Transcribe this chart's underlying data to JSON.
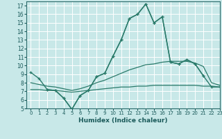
{
  "bg_color": "#c8e8e8",
  "grid_color": "#ffffff",
  "line_color": "#2a7a6a",
  "xlabel": "Humidex (Indice chaleur)",
  "xlim": [
    -0.5,
    23
  ],
  "ylim": [
    5,
    17.5
  ],
  "xticks": [
    0,
    1,
    2,
    3,
    4,
    5,
    6,
    7,
    8,
    9,
    10,
    11,
    12,
    13,
    14,
    15,
    16,
    17,
    18,
    19,
    20,
    21,
    22,
    23
  ],
  "yticks": [
    5,
    6,
    7,
    8,
    9,
    10,
    11,
    12,
    13,
    14,
    15,
    16,
    17
  ],
  "series": [
    {
      "x": [
        0,
        1,
        2,
        3,
        4,
        5,
        6,
        7,
        8,
        9,
        10,
        11,
        12,
        13,
        14,
        15,
        16,
        17,
        18,
        19,
        20,
        21
      ],
      "y": [
        9.2,
        8.5,
        7.2,
        7.1,
        6.2,
        4.9,
        6.5,
        7.1,
        8.7,
        9.1,
        11.1,
        13.0,
        15.5,
        16.0,
        17.2,
        15.0,
        15.7,
        10.4,
        10.2,
        10.7,
        10.2,
        8.8
      ],
      "marker": true,
      "lw": 1.0
    },
    {
      "x": [
        2,
        3,
        4,
        5,
        6,
        7,
        8,
        9,
        10,
        11,
        12,
        13,
        14,
        15,
        16,
        17,
        18,
        19,
        20,
        21,
        22,
        23
      ],
      "y": [
        7.2,
        7.1,
        6.2,
        4.9,
        6.5,
        7.1,
        8.7,
        9.1,
        11.1,
        13.0,
        15.5,
        16.0,
        17.2,
        15.0,
        15.7,
        10.4,
        10.2,
        10.7,
        10.2,
        8.8,
        7.5,
        7.5
      ],
      "marker": true,
      "lw": 1.0
    },
    {
      "x": [
        0,
        1,
        2,
        3,
        4,
        5,
        6,
        7,
        8,
        9,
        10,
        11,
        12,
        13,
        14,
        15,
        16,
        17,
        18,
        19,
        20,
        21,
        22,
        23
      ],
      "y": [
        8.0,
        7.8,
        7.6,
        7.5,
        7.3,
        7.1,
        7.3,
        7.6,
        8.0,
        8.3,
        8.7,
        9.1,
        9.5,
        9.8,
        10.1,
        10.2,
        10.4,
        10.5,
        10.5,
        10.5,
        10.3,
        9.9,
        8.0,
        7.7
      ],
      "marker": false,
      "lw": 0.9
    },
    {
      "x": [
        0,
        1,
        2,
        3,
        4,
        5,
        6,
        7,
        8,
        9,
        10,
        11,
        12,
        13,
        14,
        15,
        16,
        17,
        18,
        19,
        20,
        21,
        22,
        23
      ],
      "y": [
        7.2,
        7.2,
        7.1,
        7.1,
        7.0,
        6.9,
        7.0,
        7.1,
        7.2,
        7.3,
        7.4,
        7.5,
        7.5,
        7.6,
        7.6,
        7.7,
        7.7,
        7.7,
        7.7,
        7.7,
        7.7,
        7.6,
        7.6,
        7.5
      ],
      "marker": false,
      "lw": 0.9
    }
  ]
}
